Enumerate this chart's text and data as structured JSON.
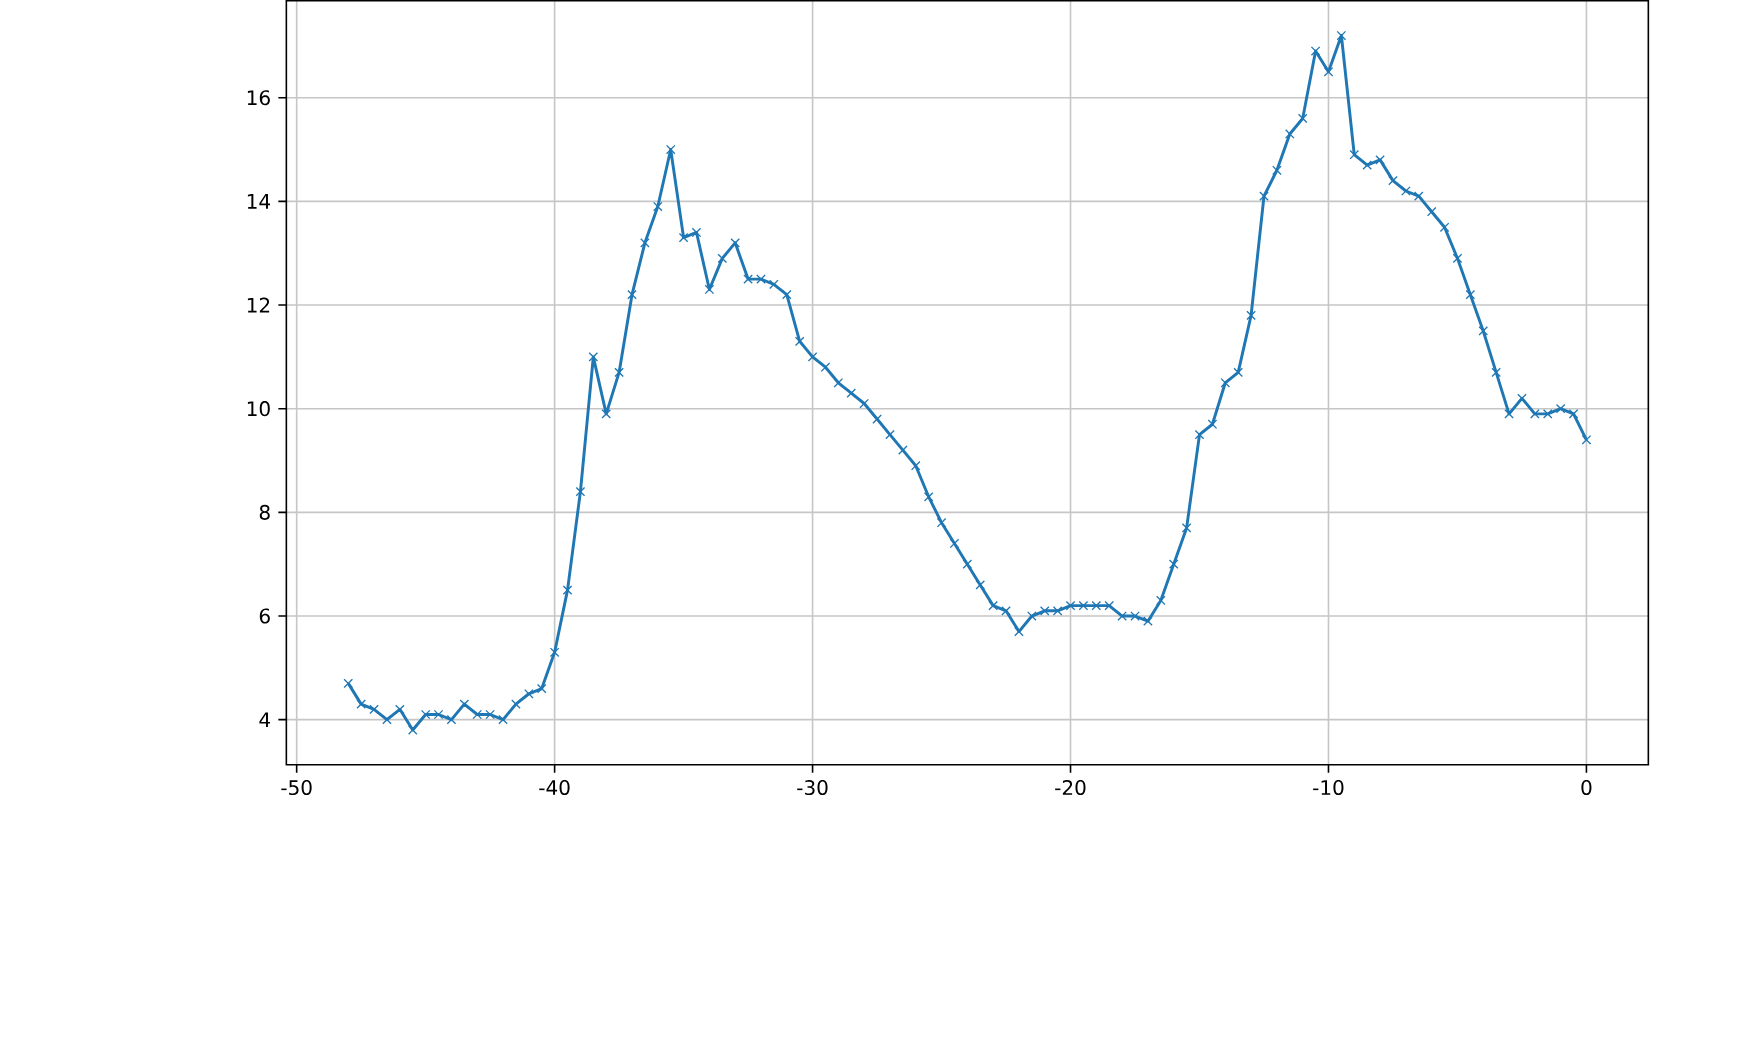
{
  "chart_data": {
    "type": "line",
    "x": [
      -48,
      -47.5,
      -47,
      -46.5,
      -46,
      -45.5,
      -45,
      -44.5,
      -44,
      -43.5,
      -43,
      -42.5,
      -42,
      -41.5,
      -41,
      -40.5,
      -40,
      -39.5,
      -39,
      -38.5,
      -38,
      -37.5,
      -37,
      -36.5,
      -36,
      -35.5,
      -35,
      -34.5,
      -34,
      -33.5,
      -33,
      -32.5,
      -32,
      -31.5,
      -31,
      -30.5,
      -30,
      -29.5,
      -29,
      -28.5,
      -28,
      -27.5,
      -27,
      -26.5,
      -26,
      -25.5,
      -25,
      -24.5,
      -24,
      -23.5,
      -23,
      -22.5,
      -22,
      -21.5,
      -21,
      -20.5,
      -20,
      -19.5,
      -19,
      -18.5,
      -18,
      -17.5,
      -17,
      -16.5,
      -16,
      -15.5,
      -15,
      -14.5,
      -14,
      -13.5,
      -13,
      -12.5,
      -12,
      -11.5,
      -11,
      -10.5,
      -10,
      -9.5,
      -9,
      -8.5,
      -8,
      -7.5,
      -7,
      -6.5,
      -6,
      -5.5,
      -5,
      -4.5,
      -4,
      -3.5,
      -3,
      -2.5,
      -2,
      -1.5,
      -1,
      -0.5,
      0
    ],
    "series": [
      {
        "color": "#1f77b4",
        "values": [
          4.7,
          4.3,
          4.2,
          4.0,
          4.2,
          3.8,
          4.1,
          4.1,
          4.0,
          4.3,
          4.1,
          4.1,
          4.0,
          4.3,
          4.5,
          4.6,
          5.3,
          6.5,
          8.4,
          11.0,
          9.9,
          10.7,
          12.2,
          13.2,
          13.9,
          15.0,
          13.3,
          13.4,
          12.3,
          12.9,
          13.2,
          12.5,
          12.5,
          12.4,
          12.2,
          11.3,
          11.0,
          10.8,
          10.5,
          10.3,
          10.1,
          9.8,
          9.5,
          9.2,
          8.9,
          8.3,
          7.8,
          7.4,
          7.0,
          6.6,
          6.2,
          6.1,
          5.7,
          6.0,
          6.1,
          6.1,
          6.2,
          6.2,
          6.2,
          6.2,
          6.0,
          6.0,
          5.9,
          6.3,
          7.0,
          7.7,
          9.5,
          9.7,
          10.5,
          10.7,
          11.8,
          14.1,
          14.6,
          15.3,
          15.6,
          16.9,
          16.5,
          17.2,
          14.9,
          14.7,
          14.8,
          14.4,
          14.2,
          14.1,
          13.8,
          13.5,
          12.9,
          12.2,
          11.5,
          10.7,
          9.9,
          10.2,
          9.9,
          9.9,
          10.0,
          9.9,
          9.4
        ]
      }
    ],
    "xlim": [
      -50.4,
      2.4
    ],
    "ylim": [
      3.13,
      17.87
    ],
    "xticks": [
      -50,
      -40,
      -30,
      -20,
      -10,
      0
    ],
    "yticks": [
      4,
      6,
      8,
      10,
      12,
      14,
      16
    ],
    "grid": true,
    "marker": "cross",
    "line_style": "solid"
  }
}
